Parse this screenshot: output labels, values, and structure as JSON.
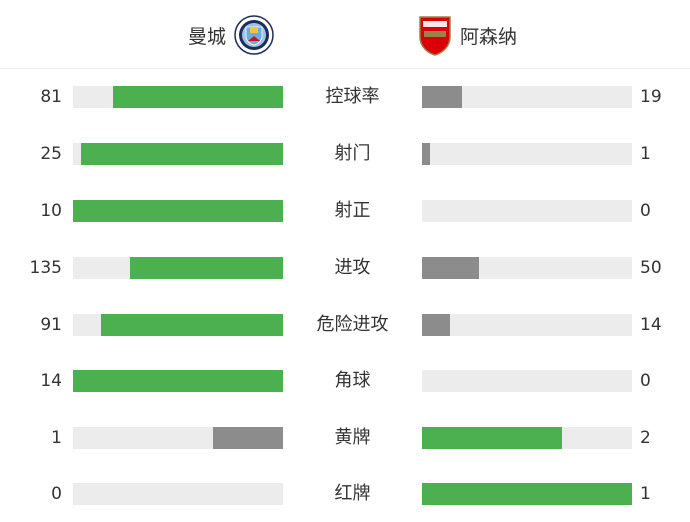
{
  "colors": {
    "leader": "#4caf50",
    "trailer": "#8c8c8c",
    "track": "#ececec"
  },
  "home": {
    "name": "曼城",
    "logo_text": "MANCHESTER CITY",
    "logo_icon": "manchester-city-crest"
  },
  "away": {
    "name": "阿森纳",
    "logo_text": "Arsenal",
    "logo_icon": "arsenal-crest"
  },
  "stats": [
    {
      "label": "控球率",
      "home": 81,
      "away": 19
    },
    {
      "label": "射门",
      "home": 25,
      "away": 1
    },
    {
      "label": "射正",
      "home": 10,
      "away": 0
    },
    {
      "label": "进攻",
      "home": 135,
      "away": 50
    },
    {
      "label": "危险进攻",
      "home": 91,
      "away": 14
    },
    {
      "label": "角球",
      "home": 14,
      "away": 0
    },
    {
      "label": "黄牌",
      "home": 1,
      "away": 2
    },
    {
      "label": "红牌",
      "home": 0,
      "away": 1
    }
  ]
}
